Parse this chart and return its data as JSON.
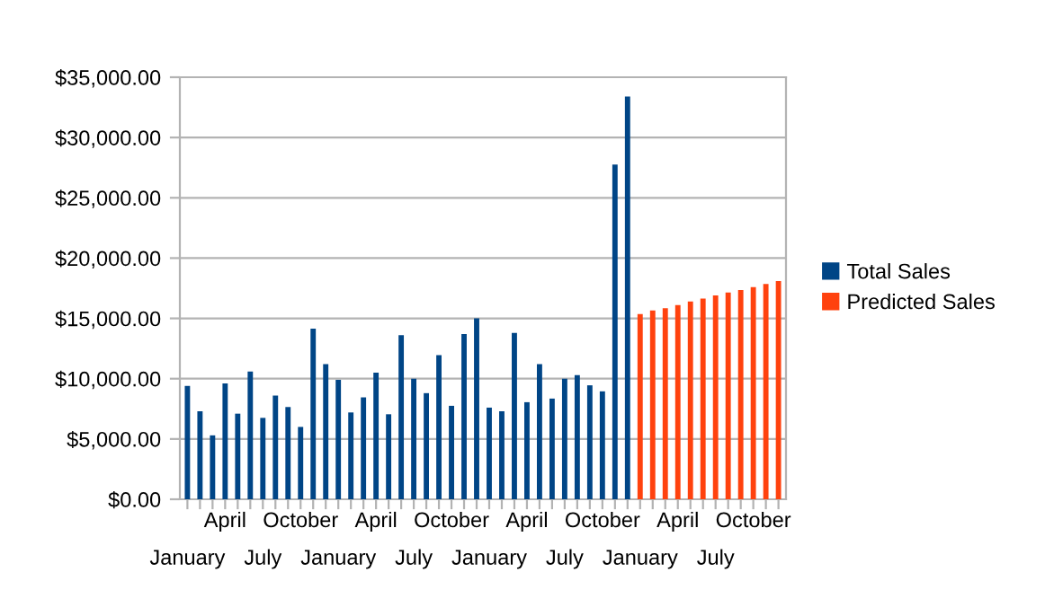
{
  "chart_data": {
    "type": "bar",
    "categories": [
      "January",
      null,
      null,
      "April",
      null,
      null,
      "July",
      null,
      null,
      "October",
      null,
      null,
      "January",
      null,
      null,
      "April",
      null,
      null,
      "July",
      null,
      null,
      "October",
      null,
      null,
      "January",
      null,
      null,
      "April",
      null,
      null,
      "July",
      null,
      null,
      "October",
      null,
      null,
      "January",
      null,
      null,
      "April",
      null,
      null,
      "July",
      null,
      null,
      "October",
      null,
      null
    ],
    "series": [
      {
        "name": "Total Sales",
        "color": "#004586",
        "values": [
          9400,
          7300,
          5300,
          9600,
          7100,
          10600,
          6750,
          8600,
          7650,
          6000,
          14150,
          11200,
          9900,
          7200,
          8450,
          10500,
          7050,
          13600,
          10000,
          8800,
          11950,
          7750,
          13700,
          15000,
          7600,
          7300,
          13800,
          8050,
          11200,
          8350,
          10000,
          10300,
          9450,
          8950,
          27750,
          33400,
          null,
          null,
          null,
          null,
          null,
          null,
          null,
          null,
          null,
          null,
          null,
          null
        ]
      },
      {
        "name": "Predicted Sales",
        "color": "#ff420e",
        "values": [
          null,
          null,
          null,
          null,
          null,
          null,
          null,
          null,
          null,
          null,
          null,
          null,
          null,
          null,
          null,
          null,
          null,
          null,
          null,
          null,
          null,
          null,
          null,
          null,
          null,
          null,
          null,
          null,
          null,
          null,
          null,
          null,
          null,
          null,
          null,
          null,
          15350,
          15650,
          15850,
          16100,
          16400,
          16650,
          16900,
          17150,
          17350,
          17600,
          17850,
          18100
        ]
      }
    ],
    "ylim": [
      0,
      35000
    ],
    "yticks": [
      {
        "value": 0,
        "label": "$0.00"
      },
      {
        "value": 5000,
        "label": "$5,000.00"
      },
      {
        "value": 10000,
        "label": "$10,000.00"
      },
      {
        "value": 15000,
        "label": "$15,000.00"
      },
      {
        "value": 20000,
        "label": "$20,000.00"
      },
      {
        "value": 25000,
        "label": "$25,000.00"
      },
      {
        "value": 30000,
        "label": "$30,000.00"
      },
      {
        "value": 35000,
        "label": "$35,000.00"
      }
    ],
    "grid": "y",
    "legend": "right"
  }
}
